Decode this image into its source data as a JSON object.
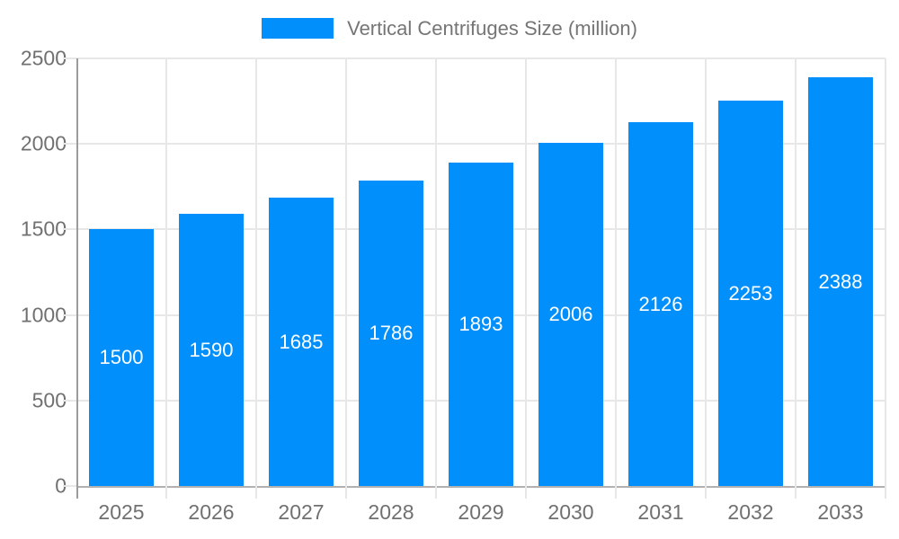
{
  "legend": {
    "label": "Vertical Centrifuges Size (million)"
  },
  "colors": {
    "bar": "#008FFB",
    "grid": "#e7e7e7",
    "y_axis_line": "#9b9b9b",
    "x_axis_line": "#b1b1b1",
    "bar_label": "#ffffff",
    "axis_text": "#707070",
    "legend_text": "#757575",
    "background": "#ffffff"
  },
  "chart_data": {
    "type": "bar",
    "title": "Vertical Centrifuges Size (million)",
    "categories": [
      "2025",
      "2026",
      "2027",
      "2028",
      "2029",
      "2030",
      "2031",
      "2032",
      "2033"
    ],
    "values": [
      1500,
      1590,
      1685,
      1786,
      1893,
      2006,
      2126,
      2253,
      2388
    ],
    "xlabel": "",
    "ylabel": "",
    "ylim": [
      0,
      2500
    ],
    "ytick_step": 500,
    "ytick_labels": [
      "0",
      "500",
      "1000",
      "1500",
      "2000",
      "2500"
    ],
    "grid": true,
    "legend_position": "top",
    "bar_value_labels": true
  }
}
